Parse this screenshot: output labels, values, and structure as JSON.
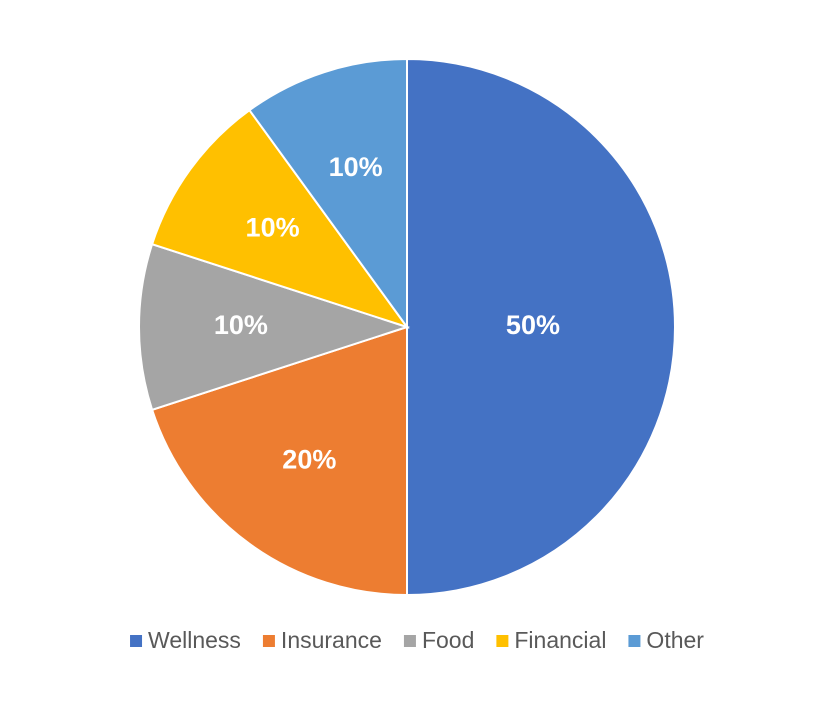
{
  "chart_data": {
    "type": "pie",
    "categories": [
      "Wellness",
      "Insurance",
      "Food",
      "Financial",
      "Other"
    ],
    "values": [
      50,
      20,
      10,
      10,
      10
    ],
    "value_labels": [
      "50%",
      "20%",
      "10%",
      "10%",
      "10%"
    ],
    "colors": [
      "#4472c4",
      "#ed7d31",
      "#a5a5a5",
      "#ffc000",
      "#5b9bd5"
    ],
    "legend": "bottom"
  }
}
